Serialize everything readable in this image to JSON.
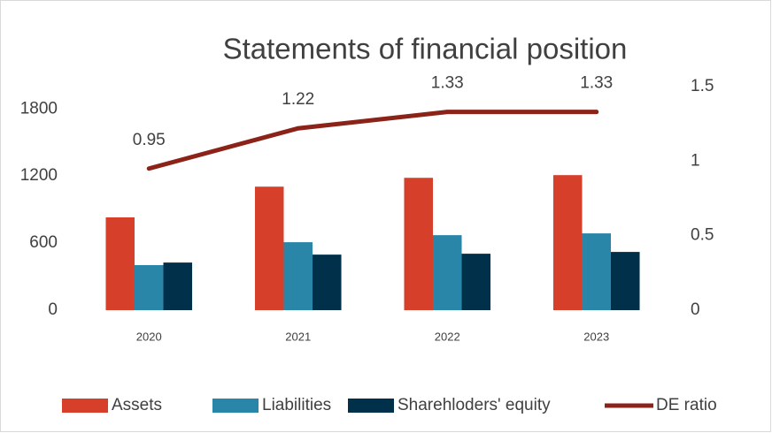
{
  "chart_data": {
    "type": "bar",
    "title": "Statements of financial position",
    "categories": [
      "2020",
      "2021",
      "2022",
      "2023"
    ],
    "series": [
      {
        "name": "Assets",
        "color": "#d63f2a",
        "values": [
          830,
          1105,
          1184,
          1208
        ]
      },
      {
        "name": "Liabilities",
        "color": "#2a86a8",
        "values": [
          403,
          608,
          671,
          687
        ]
      },
      {
        "name": "Sharehloders' equity",
        "color": "#00304a",
        "values": [
          426,
          497,
          505,
          521
        ]
      },
      {
        "name": "DE ratio",
        "color": "#8b2318",
        "type": "line",
        "axis": "y2",
        "values": [
          0.95,
          1.22,
          1.33,
          1.33
        ]
      }
    ],
    "ylim": [
      0,
      2000
    ],
    "yticks": [
      0,
      600,
      1200,
      1800
    ],
    "y2lim": [
      0,
      1.5
    ],
    "y2ticks": [
      0,
      0.5,
      1,
      1.5
    ],
    "grid": false,
    "legend": "bottom"
  }
}
